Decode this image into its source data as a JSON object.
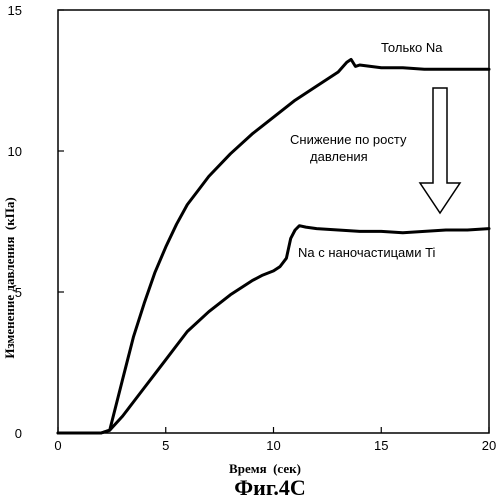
{
  "chart_data": {
    "type": "line",
    "xlabel": "Время  (сек)",
    "ylabel": "Изменение давления  (кПа)",
    "xlim": [
      0,
      20
    ],
    "ylim": [
      0,
      15
    ],
    "x_ticks": [
      "0",
      "5",
      "10",
      "15",
      "20"
    ],
    "y_ticks": [
      "0",
      "5",
      "10",
      "15"
    ],
    "grid": false,
    "series": [
      {
        "name": "Только Na",
        "x": [
          0,
          1,
          2,
          2.4,
          3,
          3.5,
          4,
          4.5,
          5,
          5.5,
          6,
          6.5,
          7,
          8,
          9,
          10,
          11,
          12,
          13,
          13.4,
          13.6,
          13.8,
          14,
          14.5,
          15,
          16,
          17,
          18,
          19,
          20
        ],
        "y": [
          0,
          0,
          0,
          0.1,
          1.9,
          3.4,
          4.6,
          5.7,
          6.6,
          7.4,
          8.1,
          8.6,
          9.1,
          9.9,
          10.6,
          11.2,
          11.8,
          12.3,
          12.8,
          13.15,
          13.25,
          13.0,
          13.05,
          13.0,
          12.95,
          12.95,
          12.9,
          12.9,
          12.9,
          12.9
        ]
      },
      {
        "name": "Na с наночастицами Ti",
        "x": [
          0,
          1,
          2,
          2.4,
          3,
          3.5,
          4,
          4.5,
          5,
          5.5,
          6,
          7,
          8,
          9,
          9.5,
          10,
          10.3,
          10.6,
          10.8,
          11,
          11.2,
          11.5,
          12,
          13,
          14,
          15,
          16,
          17,
          18,
          19,
          20
        ],
        "y": [
          0,
          0,
          0,
          0.1,
          0.6,
          1.1,
          1.6,
          2.1,
          2.6,
          3.1,
          3.6,
          4.3,
          4.9,
          5.4,
          5.6,
          5.75,
          5.9,
          6.2,
          6.9,
          7.2,
          7.35,
          7.3,
          7.25,
          7.2,
          7.15,
          7.15,
          7.1,
          7.15,
          7.2,
          7.2,
          7.25
        ]
      }
    ],
    "annotations": {
      "top_label": "Только Na",
      "middle_label_line1": "Снижение по росту",
      "middle_label_line2": "давления",
      "bottom_label": "Na с наночастицами Ti"
    }
  },
  "caption": "Фиг.4С"
}
